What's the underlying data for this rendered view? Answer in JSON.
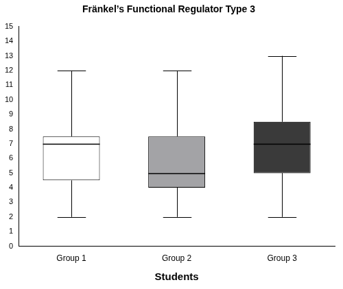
{
  "chart_data": {
    "type": "box",
    "title": "Fränkel’s Functional Regulator Type 3",
    "x_label": "Students",
    "categories": [
      "Group 1",
      "Group 2",
      "Group 3"
    ],
    "boxes": [
      {
        "min": 2,
        "q1": 4.5,
        "median": 7,
        "q3": 7.5,
        "max": 12
      },
      {
        "min": 2,
        "q1": 4,
        "median": 5,
        "q3": 7.5,
        "max": 12
      },
      {
        "min": 2,
        "q1": 5,
        "median": 7,
        "q3": 8.5,
        "max": 13
      }
    ],
    "colors": [
      "#ffffff",
      "#a3a3a6",
      "#3a3a3a"
    ],
    "ylim": [
      0,
      15
    ],
    "yticks": [
      0,
      1,
      2,
      3,
      4,
      5,
      6,
      7,
      8,
      9,
      10,
      11,
      12,
      13,
      14,
      15
    ],
    "grid": false
  }
}
